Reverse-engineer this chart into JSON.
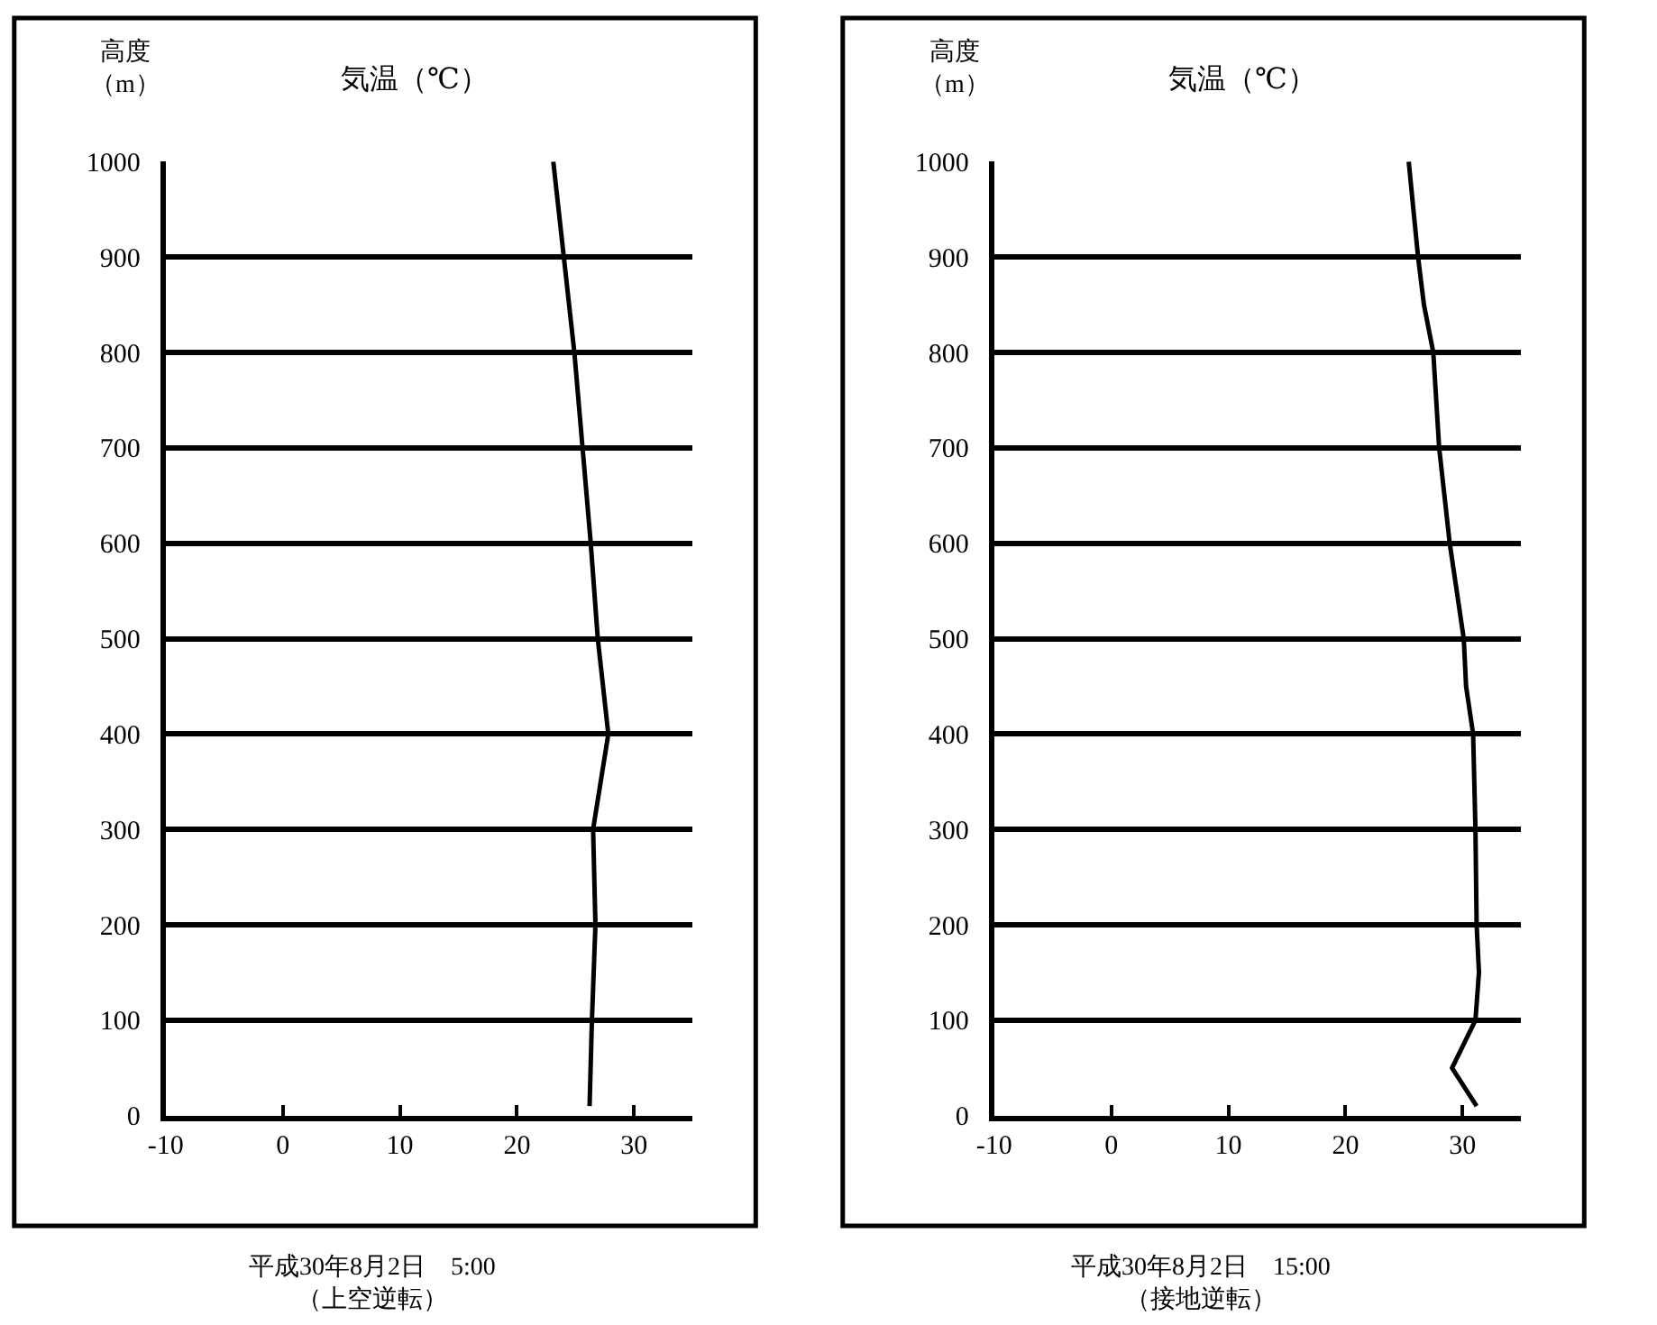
{
  "chart_data": [
    {
      "type": "line",
      "xlabel": "気温（℃）",
      "ylabel": "高度（m）",
      "xlim": [
        -10,
        35
      ],
      "xticks": [
        -10,
        0,
        10,
        20,
        30
      ],
      "ylim": [
        0,
        1000
      ],
      "yticks": [
        0,
        100,
        200,
        300,
        400,
        500,
        600,
        700,
        800,
        900,
        1000
      ],
      "grid": "y",
      "series": [
        {
          "color": "#000000",
          "x": [
            26.2,
            26.4,
            26.7,
            26.5,
            27.8,
            26.9,
            26.3,
            25.6,
            24.9,
            24.0,
            23.1
          ],
          "values": [
            10,
            100,
            200,
            300,
            400,
            500,
            600,
            700,
            800,
            900,
            1000
          ]
        }
      ],
      "annotations": [
        "平成30年8月2日　5:00\n（上空逆転）"
      ]
    },
    {
      "type": "line",
      "xlabel": "気温（℃）",
      "ylabel": "高度（m）",
      "xlim": [
        -10,
        35
      ],
      "xticks": [
        -10,
        0,
        10,
        20,
        30
      ],
      "ylim": [
        0,
        1000
      ],
      "yticks": [
        0,
        100,
        200,
        300,
        400,
        500,
        600,
        700,
        800,
        900,
        1000
      ],
      "grid": "y",
      "series": [
        {
          "color": "#000000",
          "x": [
            31.2,
            29.1,
            31.1,
            31.4,
            31.2,
            31.1,
            30.9,
            30.3,
            30.1,
            28.9,
            28.0,
            27.5,
            26.7,
            26.2,
            25.4
          ],
          "values": [
            10,
            50,
            100,
            150,
            200,
            300,
            400,
            450,
            500,
            600,
            700,
            800,
            850,
            900,
            1000
          ]
        }
      ],
      "annotations": [
        "平成30年8月2日　15:00\n（接地逆転）"
      ]
    }
  ]
}
